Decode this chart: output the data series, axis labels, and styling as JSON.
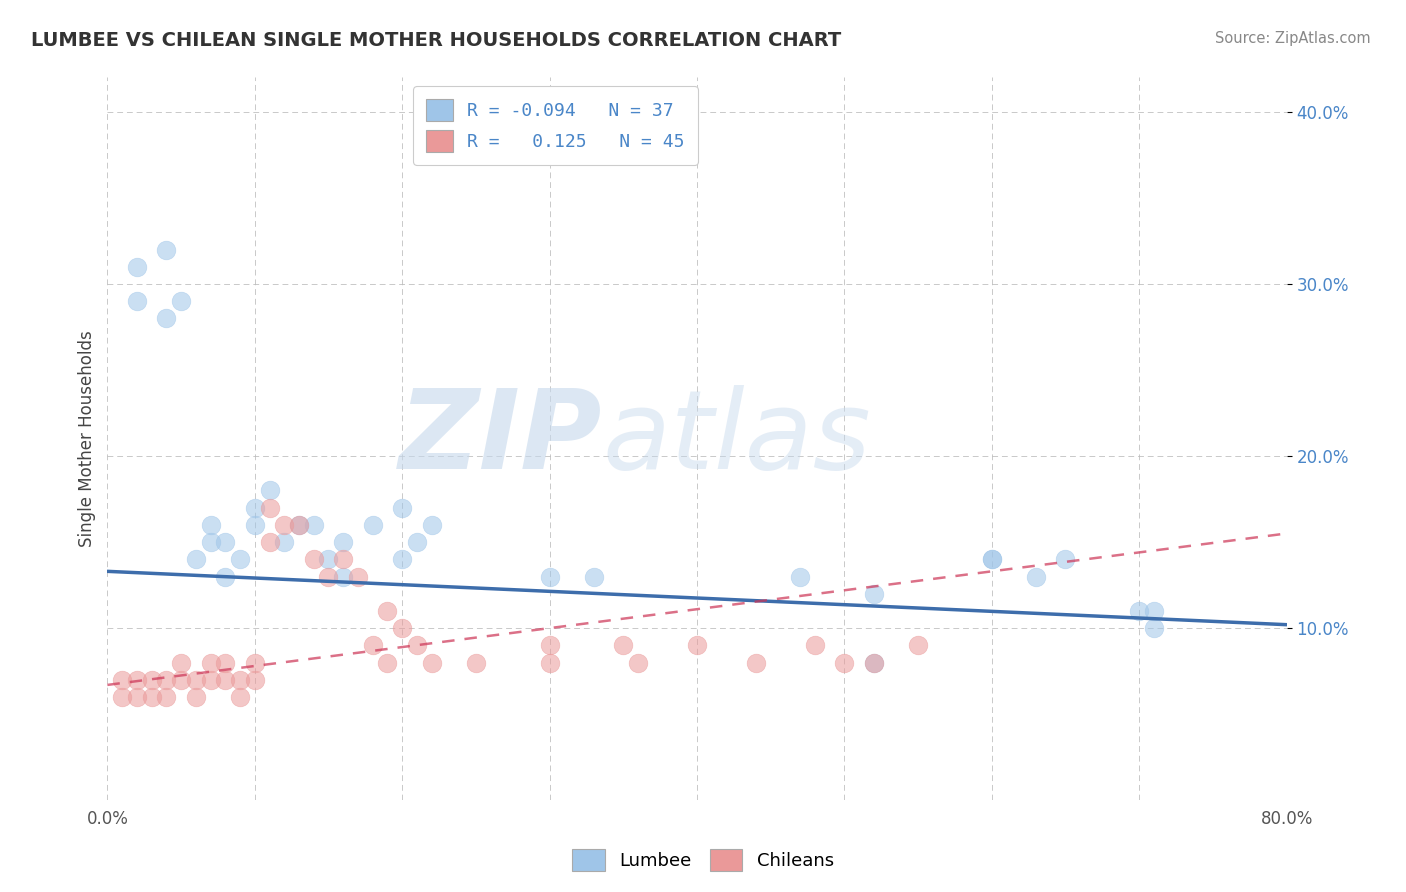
{
  "title": "LUMBEE VS CHILEAN SINGLE MOTHER HOUSEHOLDS CORRELATION CHART",
  "source": "Source: ZipAtlas.com",
  "ylabel": "Single Mother Households",
  "xlim": [
    0.0,
    0.8
  ],
  "ylim": [
    0.0,
    0.42
  ],
  "xticks": [
    0.0,
    0.1,
    0.2,
    0.3,
    0.4,
    0.5,
    0.6,
    0.7,
    0.8
  ],
  "yticks": [
    0.1,
    0.2,
    0.3,
    0.4
  ],
  "lumbee_R": -0.094,
  "lumbee_N": 37,
  "chilean_R": 0.125,
  "chilean_N": 45,
  "lumbee_color": "#9fc5e8",
  "chilean_color": "#ea9999",
  "lumbee_line_color": "#3d6dab",
  "chilean_line_color": "#cc3355",
  "background_color": "#ffffff",
  "grid_color": "#bbbbbb",
  "watermark_zip": "ZIP",
  "watermark_atlas": "atlas",
  "lumbee_scatter_x": [
    0.02,
    0.04,
    0.05,
    0.06,
    0.07,
    0.07,
    0.08,
    0.08,
    0.09,
    0.1,
    0.1,
    0.11,
    0.12,
    0.13,
    0.14,
    0.15,
    0.16,
    0.16,
    0.18,
    0.2,
    0.2,
    0.21,
    0.22,
    0.3,
    0.33,
    0.47,
    0.52,
    0.6,
    0.63,
    0.65,
    0.7,
    0.71,
    0.71,
    0.02,
    0.04,
    0.52,
    0.6
  ],
  "lumbee_scatter_y": [
    0.29,
    0.32,
    0.29,
    0.14,
    0.16,
    0.15,
    0.13,
    0.15,
    0.14,
    0.16,
    0.17,
    0.18,
    0.15,
    0.16,
    0.16,
    0.14,
    0.13,
    0.15,
    0.16,
    0.14,
    0.17,
    0.15,
    0.16,
    0.13,
    0.13,
    0.13,
    0.08,
    0.14,
    0.13,
    0.14,
    0.11,
    0.11,
    0.1,
    0.31,
    0.28,
    0.12,
    0.14
  ],
  "chilean_scatter_x": [
    0.01,
    0.01,
    0.02,
    0.02,
    0.03,
    0.03,
    0.04,
    0.04,
    0.05,
    0.05,
    0.06,
    0.06,
    0.07,
    0.07,
    0.08,
    0.08,
    0.09,
    0.09,
    0.1,
    0.1,
    0.11,
    0.11,
    0.12,
    0.13,
    0.14,
    0.15,
    0.16,
    0.17,
    0.18,
    0.19,
    0.19,
    0.2,
    0.21,
    0.22,
    0.25,
    0.3,
    0.3,
    0.35,
    0.36,
    0.4,
    0.44,
    0.48,
    0.5,
    0.52,
    0.55
  ],
  "chilean_scatter_y": [
    0.07,
    0.06,
    0.07,
    0.06,
    0.07,
    0.06,
    0.07,
    0.06,
    0.08,
    0.07,
    0.07,
    0.06,
    0.08,
    0.07,
    0.07,
    0.08,
    0.06,
    0.07,
    0.08,
    0.07,
    0.17,
    0.15,
    0.16,
    0.16,
    0.14,
    0.13,
    0.14,
    0.13,
    0.09,
    0.11,
    0.08,
    0.1,
    0.09,
    0.08,
    0.08,
    0.09,
    0.08,
    0.09,
    0.08,
    0.09,
    0.08,
    0.09,
    0.08,
    0.08,
    0.09
  ]
}
